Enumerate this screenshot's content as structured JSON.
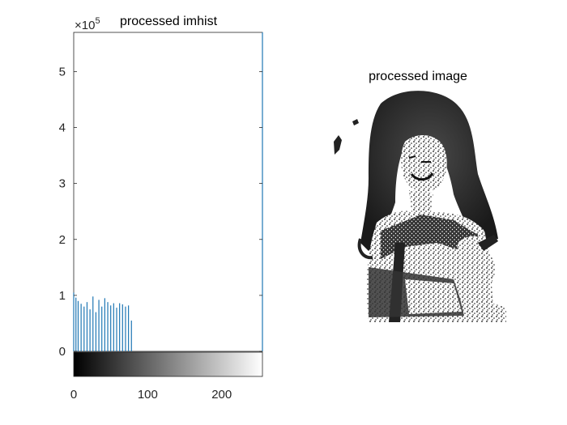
{
  "chart_data": [
    {
      "type": "bar",
      "title": "processed imhist",
      "exponent_label_base": "×10",
      "exponent_label_power": "5",
      "xlim": [
        0,
        255
      ],
      "ylim_scaled": [
        0,
        5.7
      ],
      "y_multiplier": 100000,
      "x_ticks": [
        "0",
        "100",
        "200"
      ],
      "x_tick_values": [
        0,
        100,
        200
      ],
      "y_ticks": [
        "0",
        "1",
        "2",
        "3",
        "4",
        "5"
      ],
      "y_tick_values": [
        0,
        1,
        2,
        3,
        4,
        5
      ],
      "bar_color": "#1f77b4",
      "bars": [
        {
          "x": 0,
          "y": 1.05
        },
        {
          "x": 3,
          "y": 0.96
        },
        {
          "x": 6,
          "y": 0.9
        },
        {
          "x": 10,
          "y": 0.85
        },
        {
          "x": 14,
          "y": 0.8
        },
        {
          "x": 18,
          "y": 0.88
        },
        {
          "x": 22,
          "y": 0.75
        },
        {
          "x": 26,
          "y": 0.98
        },
        {
          "x": 30,
          "y": 0.7
        },
        {
          "x": 34,
          "y": 0.92
        },
        {
          "x": 38,
          "y": 0.8
        },
        {
          "x": 42,
          "y": 0.95
        },
        {
          "x": 46,
          "y": 0.88
        },
        {
          "x": 50,
          "y": 0.82
        },
        {
          "x": 54,
          "y": 0.86
        },
        {
          "x": 58,
          "y": 0.78
        },
        {
          "x": 62,
          "y": 0.86
        },
        {
          "x": 66,
          "y": 0.84
        },
        {
          "x": 70,
          "y": 0.8
        },
        {
          "x": 74,
          "y": 0.82
        },
        {
          "x": 78,
          "y": 0.55
        },
        {
          "x": 255,
          "y": 5.7
        }
      ],
      "colorbar": "grayscale 0-255"
    },
    {
      "type": "image",
      "title": "processed image"
    }
  ]
}
